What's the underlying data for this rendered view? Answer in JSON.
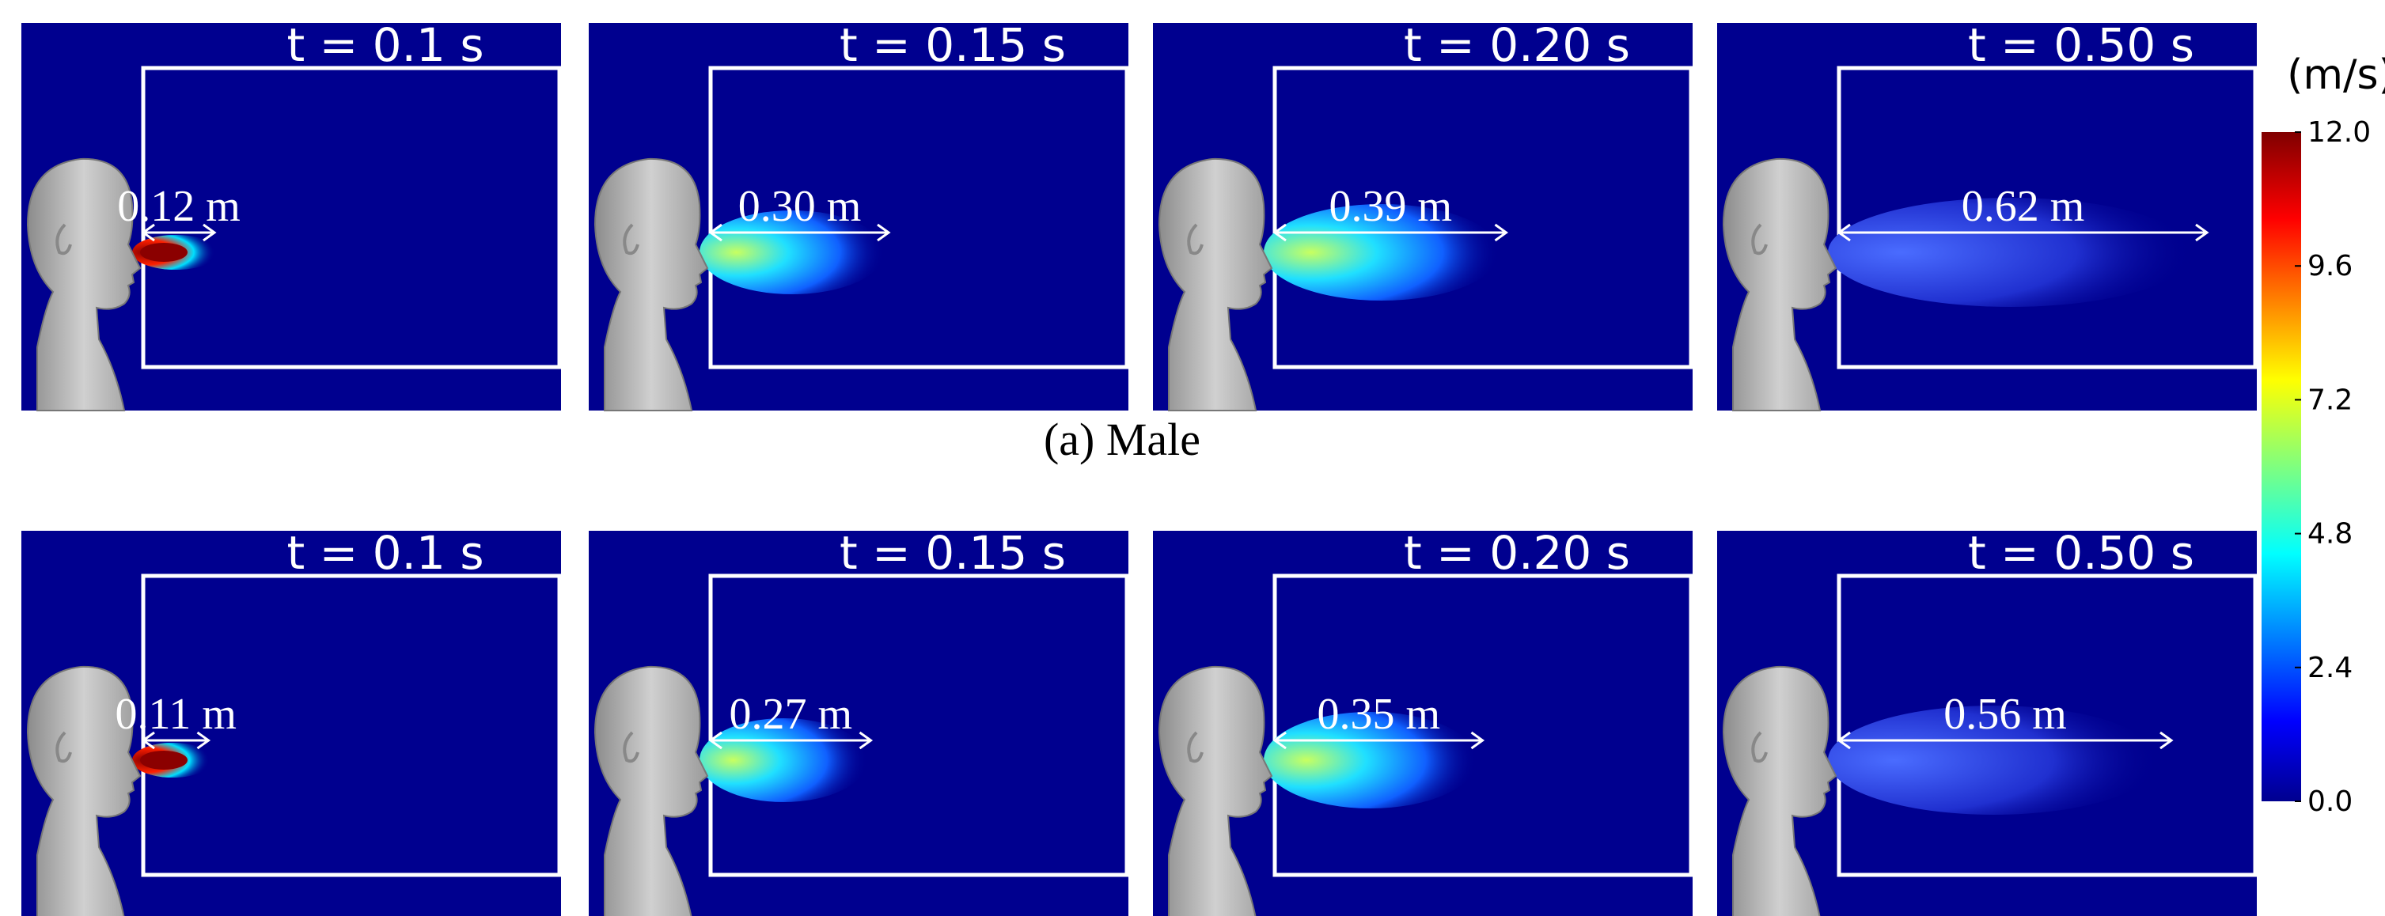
{
  "rows": [
    {
      "caption": "(a) Male",
      "panels": [
        {
          "time": "t = 0.1 s",
          "distance": "0.12 m"
        },
        {
          "time": "t = 0.15 s",
          "distance": "0.30 m"
        },
        {
          "time": "t = 0.20 s",
          "distance": "0.39 m"
        },
        {
          "time": "t = 0.50 s",
          "distance": "0.62 m"
        }
      ]
    },
    {
      "panels": [
        {
          "time": "t = 0.1 s",
          "distance": "0.11 m"
        },
        {
          "time": "t = 0.15 s",
          "distance": "0.27 m"
        },
        {
          "time": "t = 0.20 s",
          "distance": "0.35 m"
        },
        {
          "time": "t = 0.50 s",
          "distance": "0.56 m"
        }
      ]
    }
  ],
  "colorbar": {
    "unit": "(m/s)",
    "ticks": [
      {
        "value": 12,
        "label": "12.0"
      },
      {
        "value": 9.6,
        "label": "9.6"
      },
      {
        "value": 7.2,
        "label": "7.2"
      },
      {
        "value": 4.8,
        "label": "4.8"
      },
      {
        "value": 2.4,
        "label": "2.4"
      },
      {
        "value": 0,
        "label": "0.0"
      }
    ]
  }
}
